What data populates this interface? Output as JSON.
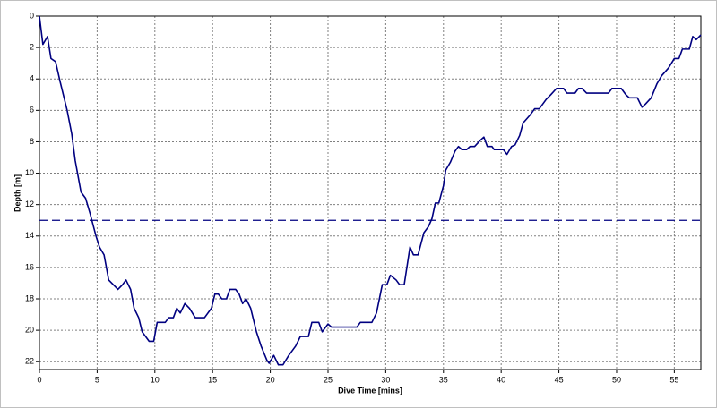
{
  "chart_data": {
    "type": "line",
    "xlabel": "Dive Time [mins]",
    "ylabel": "Depth [m]",
    "x": [
      0,
      0.3,
      0.7,
      1,
      1.4,
      1.8,
      2.4,
      2.8,
      3.1,
      3.6,
      4,
      4.4,
      4.9,
      5.2,
      5.6,
      6,
      6.4,
      6.8,
      7.2,
      7.5,
      7.9,
      8.2,
      8.6,
      8.9,
      9.5,
      9.9,
      10.2,
      10.9,
      11.2,
      11.6,
      11.9,
      12.2,
      12.6,
      13,
      13.5,
      14.3,
      14.9,
      15.2,
      15.5,
      15.8,
      16.2,
      16.5,
      17,
      17.3,
      17.6,
      17.9,
      18.3,
      18.8,
      19.2,
      19.7,
      19.9,
      20.3,
      20.7,
      21.1,
      21.6,
      22.2,
      22.6,
      23.3,
      23.6,
      24.2,
      24.5,
      25,
      25.3,
      27.5,
      27.8,
      28.8,
      29.2,
      29.7,
      30.1,
      30.4,
      30.9,
      31.2,
      31.6,
      32.1,
      32.4,
      32.8,
      33.3,
      33.7,
      34,
      34.3,
      34.6,
      35,
      35.2,
      35.6,
      36,
      36.3,
      36.6,
      37,
      37.3,
      37.7,
      38.2,
      38.5,
      38.8,
      39.2,
      39.4,
      40.2,
      40.5,
      40.9,
      41.2,
      41.6,
      41.9,
      42.5,
      42.9,
      43.3,
      43.9,
      44.3,
      44.8,
      45.4,
      45.7,
      46.4,
      46.7,
      47,
      47.4,
      49.3,
      49.6,
      50.4,
      50.8,
      51.1,
      51.8,
      52.2,
      52.5,
      53,
      53.5,
      53.9,
      54.5,
      55,
      55.4,
      55.7,
      56.3,
      56.6,
      56.9,
      57.3
    ],
    "series": [
      {
        "name": "Depth",
        "color": "#000080",
        "values": [
          0,
          1.8,
          1.3,
          2.7,
          2.9,
          4.2,
          6,
          7.5,
          9.2,
          11.2,
          11.6,
          12.6,
          14,
          14.7,
          15.2,
          16.8,
          17.1,
          17.4,
          17.1,
          16.8,
          17.4,
          18.6,
          19.2,
          20.1,
          20.7,
          20.7,
          19.5,
          19.5,
          19.2,
          19.2,
          18.6,
          18.9,
          18.3,
          18.6,
          19.2,
          19.2,
          18.6,
          17.7,
          17.7,
          18,
          18,
          17.4,
          17.4,
          17.7,
          18.3,
          18,
          18.6,
          20.1,
          21,
          21.9,
          22.1,
          21.6,
          22.2,
          22.2,
          21.6,
          21,
          20.4,
          20.4,
          19.5,
          19.5,
          20.1,
          19.6,
          19.8,
          19.8,
          19.5,
          19.5,
          18.9,
          17.1,
          17.1,
          16.5,
          16.8,
          17.1,
          17.1,
          14.7,
          15.2,
          15.2,
          13.8,
          13.4,
          12.9,
          11.9,
          11.9,
          10.8,
          9.8,
          9.3,
          8.6,
          8.3,
          8.5,
          8.5,
          8.3,
          8.3,
          7.9,
          7.7,
          8.3,
          8.3,
          8.5,
          8.5,
          8.8,
          8.3,
          8.2,
          7.6,
          6.8,
          6.3,
          5.9,
          5.9,
          5.3,
          5,
          4.6,
          4.6,
          4.9,
          4.9,
          4.6,
          4.6,
          4.9,
          4.9,
          4.6,
          4.6,
          5,
          5.2,
          5.2,
          5.8,
          5.6,
          5.2,
          4.3,
          3.8,
          3.3,
          2.7,
          2.7,
          2.1,
          2.1,
          1.3,
          1.5,
          1.2
        ]
      }
    ],
    "reference_line": {
      "value": 13,
      "color": "#000080"
    },
    "xlim": [
      0,
      57.3
    ],
    "xticks": [
      0,
      5,
      10,
      15,
      20,
      25,
      30,
      35,
      40,
      45,
      50,
      55
    ],
    "ylim": [
      0,
      22.5
    ],
    "yticks": [
      0,
      2,
      4,
      6,
      8,
      10,
      12,
      14,
      16,
      18,
      20,
      22
    ],
    "y_inverted": true,
    "grid": true
  }
}
